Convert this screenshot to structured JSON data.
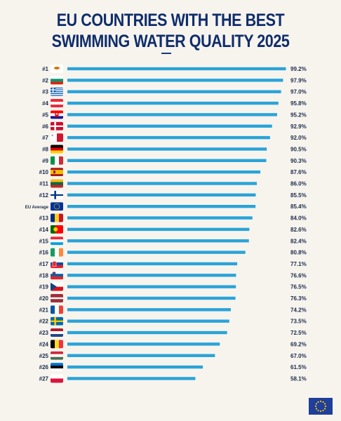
{
  "title_lines": [
    "EU COUNTRIES WITH THE BEST",
    "SWIMMING WATER QUALITY 2025"
  ],
  "colors": {
    "bar": "#2aa3d8",
    "title": "#0f2d6b",
    "text": "#1b2a4a",
    "eu_blue": "#1f3f9a",
    "eu_star": "#ffcc00"
  },
  "chart_data": {
    "type": "bar",
    "orientation": "horizontal",
    "title": "EU COUNTRIES WITH THE BEST SWIMMING WATER QUALITY 2025",
    "xlabel": "",
    "ylabel": "",
    "xlim": [
      0,
      100
    ],
    "grid": false,
    "categories": [
      "#1",
      "#2",
      "#3",
      "#4",
      "#5",
      "#6",
      "#7",
      "#8",
      "#9",
      "#10",
      "#11",
      "#12",
      "EU Average",
      "#13",
      "#14",
      "#15",
      "#16",
      "#17",
      "#18",
      "#19",
      "#20",
      "#21",
      "#22",
      "#23",
      "#24",
      "#25",
      "#26",
      "#27"
    ],
    "values": [
      99.2,
      97.9,
      97.0,
      95.8,
      95.2,
      92.9,
      92.0,
      90.5,
      90.3,
      87.6,
      86.0,
      85.5,
      85.4,
      84.0,
      82.6,
      82.4,
      80.8,
      77.1,
      76.6,
      76.5,
      76.3,
      74.2,
      73.5,
      72.5,
      69.2,
      67.0,
      61.5,
      58.1
    ],
    "value_labels": [
      "99.2%",
      "97.9%",
      "97.0%",
      "95.8%",
      "95.2%",
      "92.9%",
      "92.0%",
      "90.5%",
      "90.3%",
      "87.6%",
      "86.0%",
      "85.5%",
      "85.4%",
      "84.0%",
      "82.6%",
      "82.4%",
      "80.8%",
      "77.1%",
      "76.6%",
      "76.5%",
      "76.3%",
      "74.2%",
      "73.5%",
      "72.5%",
      "69.2%",
      "67.0%",
      "61.5%",
      "58.1%"
    ],
    "flag_icons": [
      "cyprus-flag-icon",
      "bulgaria-flag-icon",
      "greece-flag-icon",
      "austria-flag-icon",
      "croatia-flag-icon",
      "denmark-flag-icon",
      "malta-flag-icon",
      "germany-flag-icon",
      "italy-flag-icon",
      "spain-flag-icon",
      "lithuania-flag-icon",
      "finland-flag-icon",
      "eu-flag-icon",
      "romania-flag-icon",
      "portugal-flag-icon",
      "luxembourg-flag-icon",
      "ireland-flag-icon",
      "slovakia-flag-icon",
      "slovenia-flag-icon",
      "czechia-flag-icon",
      "latvia-flag-icon",
      "france-flag-icon",
      "sweden-flag-icon",
      "netherlands-flag-icon",
      "belgium-flag-icon",
      "hungary-flag-icon",
      "estonia-flag-icon",
      "poland-flag-icon"
    ]
  }
}
